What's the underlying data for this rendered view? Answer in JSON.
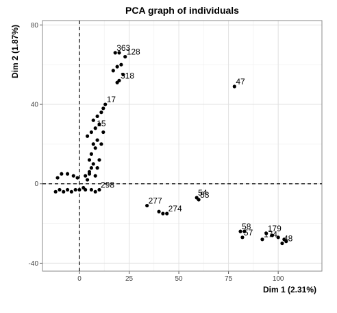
{
  "chart_data": {
    "type": "scatter",
    "title": "PCA graph of individuals",
    "x_label": "Dim 1 (2.31%)",
    "y_label": "Dim 2 (1.87%)",
    "xlim": [
      -18.6,
      122
    ],
    "ylim": [
      -44,
      82.2
    ],
    "xticks": [
      0,
      25,
      50,
      75,
      100
    ],
    "yticks": [
      -40,
      0,
      40,
      80
    ],
    "grid": true,
    "reference_lines": {
      "x": 0,
      "y": 0
    },
    "series": [
      {
        "color": "#000000",
        "x": [
          78,
          18,
          20,
          23,
          21,
          19,
          17,
          22,
          20,
          19,
          13,
          4,
          5,
          6,
          7,
          5,
          6,
          8,
          7,
          9,
          4,
          6,
          8,
          10,
          7,
          9,
          11,
          12,
          5,
          10,
          11,
          3,
          9,
          8,
          12,
          -12,
          -10,
          -8,
          -6,
          -4,
          -2,
          0,
          2,
          -11,
          -9,
          -6,
          -3,
          -1,
          3,
          6,
          8,
          10,
          34,
          40,
          42,
          44,
          59,
          60,
          81,
          83,
          82,
          94,
          97,
          92,
          100,
          103,
          104,
          102
        ],
        "y": [
          49,
          66,
          66,
          64,
          60,
          59,
          57,
          55,
          52,
          51,
          40,
          2,
          5,
          8,
          10,
          12,
          15,
          18,
          20,
          22,
          24,
          26,
          28,
          30,
          32,
          34,
          36,
          38,
          6,
          12,
          20,
          4,
          8,
          4,
          26,
          -4,
          -3,
          -4,
          -3,
          -4,
          -3,
          -3,
          -2,
          3,
          5,
          5,
          4,
          3,
          -3,
          -3,
          -4,
          -3,
          -11,
          -14,
          -15,
          -15,
          -7,
          -8,
          -24,
          -24,
          -27,
          -25,
          -26,
          -28,
          -27,
          -28,
          -29,
          -30
        ],
        "labels": [
          "47",
          "363",
          null,
          "128",
          null,
          null,
          null,
          null,
          "318",
          null,
          "17",
          null,
          null,
          null,
          null,
          null,
          null,
          null,
          null,
          null,
          null,
          null,
          "15",
          null,
          null,
          null,
          null,
          null,
          null,
          null,
          null,
          null,
          null,
          null,
          null,
          null,
          null,
          null,
          null,
          null,
          null,
          null,
          null,
          null,
          null,
          null,
          null,
          null,
          null,
          null,
          null,
          "298",
          "277",
          null,
          null,
          "274",
          "54",
          "53",
          "58",
          null,
          "57",
          "179",
          null,
          "174",
          null,
          null,
          null,
          "48"
        ]
      }
    ]
  }
}
